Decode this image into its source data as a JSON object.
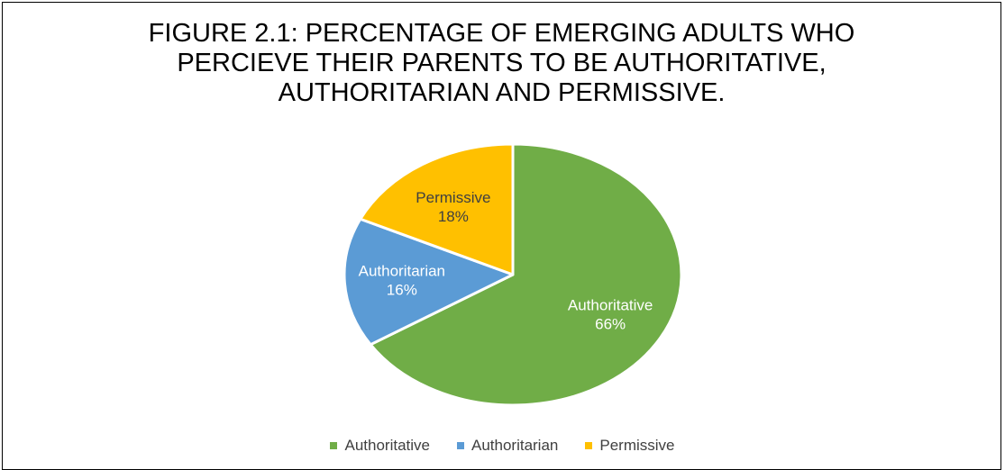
{
  "chart_data": {
    "type": "pie",
    "title_lines": [
      "FIGURE 2.1: PERCENTAGE OF EMERGING ADULTS WHO",
      "PERCIEVE THEIR PARENTS TO BE AUTHORITATIVE,",
      "AUTHORITARIAN AND PERMISSIVE."
    ],
    "slices": [
      {
        "label": "Authoritative",
        "value": 66,
        "value_label": "66%",
        "color": "#70AD47",
        "label_color": "#FFFFFF"
      },
      {
        "label": "Authoritarian",
        "value": 16,
        "value_label": "16%",
        "color": "#5B9BD5",
        "label_color": "#FFFFFF"
      },
      {
        "label": "Permissive",
        "value": 18,
        "value_label": "18%",
        "color": "#FFC000",
        "label_color": "#404040"
      }
    ],
    "start_angle_deg": 0,
    "direction": "clockwise",
    "legend_position": "bottom"
  }
}
